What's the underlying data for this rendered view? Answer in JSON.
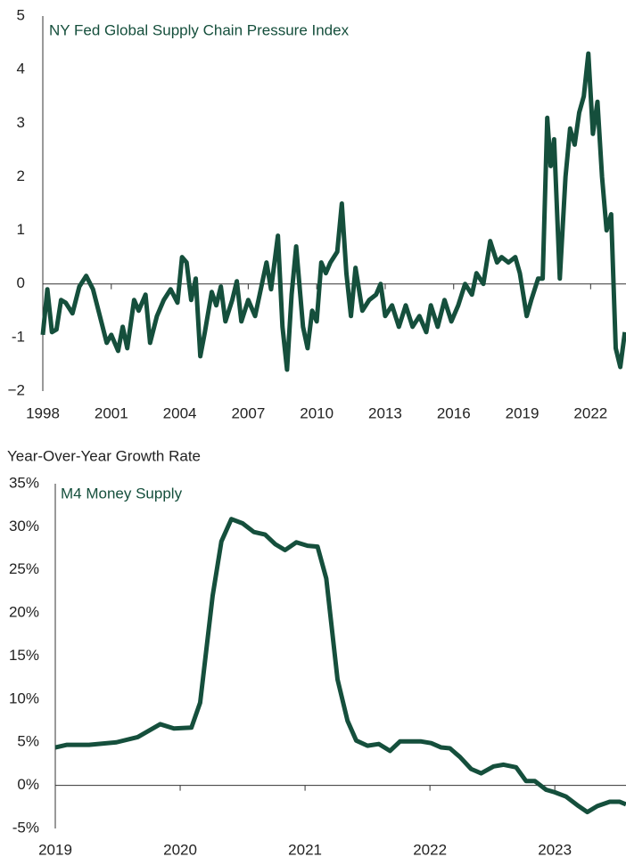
{
  "chart_data": [
    {
      "type": "line",
      "xlim": [
        1998,
        2023.55
      ],
      "xticks": [
        1998,
        2001,
        2004,
        2007,
        2010,
        2013,
        2016,
        2019,
        2022
      ],
      "ylim": [
        -2,
        5
      ],
      "yticks": [
        {
          "value": -2,
          "label": "−2"
        },
        {
          "value": -1,
          "label": "-1"
        },
        0,
        1,
        2,
        3,
        4,
        5
      ],
      "x": [
        1998.0,
        1998.2,
        1998.4,
        1998.6,
        1998.8,
        1999.0,
        1999.3,
        1999.6,
        1999.9,
        2000.2,
        2000.5,
        2000.8,
        2001.0,
        2001.3,
        2001.5,
        2001.7,
        2002.0,
        2002.2,
        2002.5,
        2002.7,
        2003.0,
        2003.3,
        2003.6,
        2003.9,
        2004.1,
        2004.3,
        2004.5,
        2004.7,
        2004.9,
        2005.1,
        2005.4,
        2005.6,
        2005.8,
        2006.0,
        2006.3,
        2006.5,
        2006.7,
        2007.0,
        2007.3,
        2007.5,
        2007.8,
        2008.0,
        2008.3,
        2008.5,
        2008.7,
        2008.9,
        2009.1,
        2009.4,
        2009.6,
        2009.8,
        2010.0,
        2010.2,
        2010.4,
        2010.6,
        2010.9,
        2011.1,
        2011.3,
        2011.5,
        2011.7,
        2012.0,
        2012.3,
        2012.6,
        2012.8,
        2013.0,
        2013.3,
        2013.6,
        2013.9,
        2014.2,
        2014.5,
        2014.8,
        2015.0,
        2015.3,
        2015.6,
        2015.9,
        2016.2,
        2016.5,
        2016.8,
        2017.0,
        2017.3,
        2017.6,
        2017.9,
        2018.1,
        2018.4,
        2018.7,
        2018.9,
        2019.2,
        2019.4,
        2019.7,
        2019.9,
        2020.1,
        2020.25,
        2020.4,
        2020.65,
        2020.9,
        2021.1,
        2021.3,
        2021.5,
        2021.7,
        2021.9,
        2022.1,
        2022.3,
        2022.5,
        2022.7,
        2022.9,
        2023.1,
        2023.3,
        2023.5
      ],
      "series": [
        {
          "name": "NY Fed Global Supply Chain Pressure Index",
          "color": "#154f3c",
          "values": [
            -0.95,
            -0.1,
            -0.9,
            -0.85,
            -0.3,
            -0.35,
            -0.55,
            -0.05,
            0.15,
            -0.1,
            -0.6,
            -1.1,
            -0.95,
            -1.25,
            -0.8,
            -1.2,
            -0.3,
            -0.5,
            -0.2,
            -1.1,
            -0.6,
            -0.3,
            -0.1,
            -0.35,
            0.5,
            0.4,
            -0.3,
            0.1,
            -1.35,
            -0.9,
            -0.15,
            -0.4,
            -0.05,
            -0.7,
            -0.3,
            0.05,
            -0.7,
            -0.3,
            -0.6,
            -0.2,
            0.4,
            -0.1,
            0.9,
            -0.8,
            -1.6,
            -0.2,
            0.7,
            -0.8,
            -1.2,
            -0.5,
            -0.7,
            0.4,
            0.2,
            0.4,
            0.6,
            1.5,
            0.2,
            -0.6,
            0.3,
            -0.5,
            -0.3,
            -0.2,
            0.0,
            -0.6,
            -0.4,
            -0.8,
            -0.4,
            -0.8,
            -0.6,
            -0.9,
            -0.4,
            -0.8,
            -0.3,
            -0.7,
            -0.4,
            0.0,
            -0.2,
            0.2,
            0.0,
            0.8,
            0.4,
            0.5,
            0.4,
            0.5,
            0.2,
            -0.6,
            -0.3,
            0.1,
            0.1,
            3.1,
            2.2,
            2.7,
            0.1,
            2.0,
            2.9,
            2.6,
            3.2,
            3.5,
            4.3,
            2.8,
            3.4,
            2.0,
            1.0,
            1.3,
            -1.2,
            -1.55,
            -0.9
          ]
        }
      ]
    },
    {
      "type": "line",
      "y_label": "Year-Over-Year Growth Rate",
      "xlim": [
        2019,
        2023.57
      ],
      "xticks": [
        2019,
        2020,
        2021,
        2022,
        2023
      ],
      "ylim": [
        -5,
        35
      ],
      "yticks": [
        {
          "value": -5,
          "label": "-5%"
        },
        {
          "value": 0,
          "label": "0%"
        },
        {
          "value": 5,
          "label": "5%"
        },
        {
          "value": 10,
          "label": "10%"
        },
        {
          "value": 15,
          "label": "15%"
        },
        {
          "value": 20,
          "label": "20%"
        },
        {
          "value": 25,
          "label": "25%"
        },
        {
          "value": 30,
          "label": "30%"
        },
        {
          "value": 35,
          "label": "35%"
        }
      ],
      "x": [
        2019.0,
        2019.09,
        2019.27,
        2019.49,
        2019.66,
        2019.84,
        2019.95,
        2020.09,
        2020.16,
        2020.26,
        2020.33,
        2020.41,
        2020.5,
        2020.59,
        2020.68,
        2020.76,
        2020.84,
        2020.93,
        2021.02,
        2021.1,
        2021.17,
        2021.26,
        2021.34,
        2021.41,
        2021.5,
        2021.59,
        2021.68,
        2021.76,
        2021.86,
        2021.93,
        2022.01,
        2022.09,
        2022.16,
        2022.24,
        2022.33,
        2022.41,
        2022.51,
        2022.59,
        2022.69,
        2022.77,
        2022.84,
        2022.93,
        2023.0,
        2023.09,
        2023.19,
        2023.26,
        2023.34,
        2023.44,
        2023.52,
        2023.57
      ],
      "series": [
        {
          "name": "M4 Money Supply",
          "color": "#154f3c",
          "values": [
            4.4,
            4.7,
            4.7,
            5.0,
            5.6,
            7.1,
            6.6,
            6.7,
            9.6,
            22,
            28.3,
            30.9,
            30.4,
            29.4,
            29.1,
            28,
            27.3,
            28.2,
            27.8,
            27.7,
            24,
            12.3,
            7.5,
            5.2,
            4.6,
            4.8,
            4,
            5.1,
            5.1,
            5.1,
            4.9,
            4.4,
            4.3,
            3.3,
            1.9,
            1.4,
            2.2,
            2.4,
            2.1,
            0.5,
            0.5,
            -0.5,
            -0.8,
            -1.3,
            -2.4,
            -3.1,
            -2.4,
            -1.9,
            -1.9,
            -2.2
          ]
        }
      ]
    }
  ]
}
